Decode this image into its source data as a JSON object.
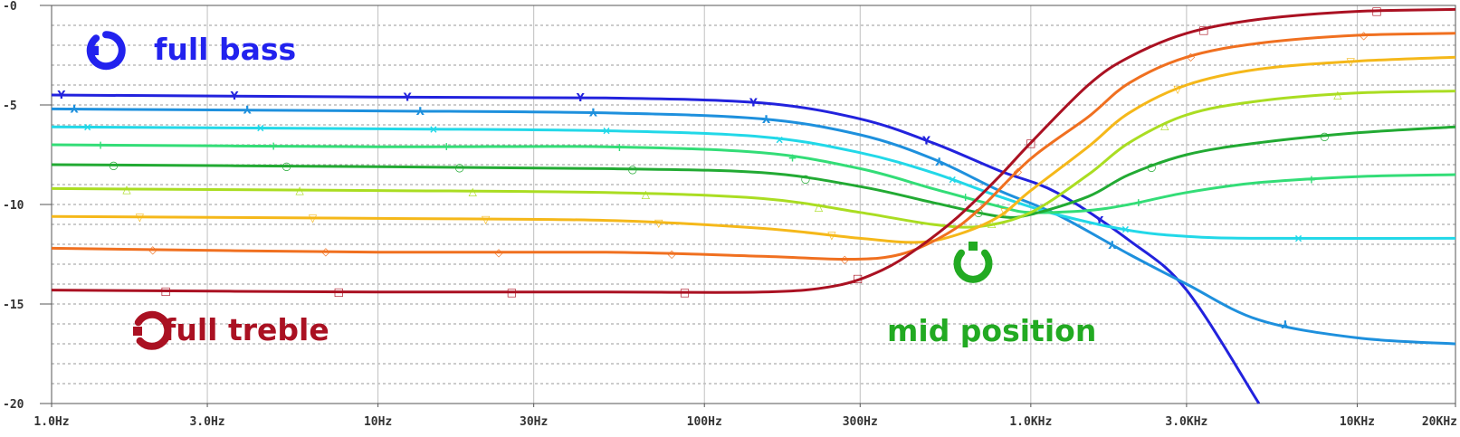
{
  "chart_data": {
    "type": "line",
    "title": "",
    "xlabel": "",
    "ylabel": "",
    "x_scale": "log",
    "xlim": [
      1,
      20000
    ],
    "ylim": [
      -20,
      0
    ],
    "grid": true,
    "x_ticks": [
      {
        "v": 1,
        "label": "1.0Hz"
      },
      {
        "v": 3,
        "label": "3.0Hz"
      },
      {
        "v": 10,
        "label": "10Hz"
      },
      {
        "v": 30,
        "label": "30Hz"
      },
      {
        "v": 100,
        "label": "100Hz"
      },
      {
        "v": 300,
        "label": "300Hz"
      },
      {
        "v": 1000,
        "label": "1.0KHz"
      },
      {
        "v": 3000,
        "label": "3.0KHz"
      },
      {
        "v": 10000,
        "label": "10KHz"
      },
      {
        "v": 20000,
        "label": "20KHz"
      }
    ],
    "y_ticks": [
      {
        "v": 0,
        "label": "-0"
      },
      {
        "v": -5,
        "label": "-5"
      },
      {
        "v": -10,
        "label": "-10"
      },
      {
        "v": -15,
        "label": "-15"
      },
      {
        "v": -20,
        "label": "-20"
      }
    ],
    "series": [
      {
        "color": "#2222dd",
        "marker": "Y",
        "points": [
          [
            1,
            -4.5
          ],
          [
            10,
            -4.6
          ],
          [
            50,
            -4.65
          ],
          [
            150,
            -4.9
          ],
          [
            300,
            -5.7
          ],
          [
            500,
            -6.9
          ],
          [
            800,
            -8.3
          ],
          [
            1200,
            -9.4
          ],
          [
            2000,
            -11.8
          ],
          [
            3000,
            -14.3
          ],
          [
            5000,
            -20
          ]
        ]
      },
      {
        "color": "#1e90dd",
        "marker": "⅄",
        "points": [
          [
            1,
            -5.2
          ],
          [
            10,
            -5.3
          ],
          [
            50,
            -5.4
          ],
          [
            150,
            -5.7
          ],
          [
            300,
            -6.5
          ],
          [
            500,
            -7.7
          ],
          [
            800,
            -9.3
          ],
          [
            1200,
            -10.5
          ],
          [
            2000,
            -12.5
          ],
          [
            3000,
            -14.0
          ],
          [
            5000,
            -15.8
          ],
          [
            10000,
            -16.7
          ],
          [
            20000,
            -17.0
          ]
        ]
      },
      {
        "color": "#22d8e8",
        "marker": "×",
        "points": [
          [
            1,
            -6.1
          ],
          [
            10,
            -6.2
          ],
          [
            50,
            -6.3
          ],
          [
            150,
            -6.6
          ],
          [
            300,
            -7.4
          ],
          [
            500,
            -8.4
          ],
          [
            800,
            -9.6
          ],
          [
            1200,
            -10.5
          ],
          [
            2000,
            -11.3
          ],
          [
            3000,
            -11.6
          ],
          [
            5000,
            -11.7
          ],
          [
            20000,
            -11.7
          ]
        ]
      },
      {
        "color": "#33dd77",
        "marker": "+",
        "points": [
          [
            1,
            -7.0
          ],
          [
            10,
            -7.1
          ],
          [
            50,
            -7.1
          ],
          [
            150,
            -7.4
          ],
          [
            300,
            -8.2
          ],
          [
            500,
            -9.2
          ],
          [
            800,
            -10.1
          ],
          [
            1000,
            -10.4
          ],
          [
            1500,
            -10.3
          ],
          [
            2000,
            -10.0
          ],
          [
            3000,
            -9.4
          ],
          [
            5000,
            -8.9
          ],
          [
            10000,
            -8.6
          ],
          [
            20000,
            -8.5
          ]
        ]
      },
      {
        "color": "#22aa33",
        "marker": "○",
        "points": [
          [
            1,
            -8.0
          ],
          [
            10,
            -8.1
          ],
          [
            50,
            -8.2
          ],
          [
            150,
            -8.4
          ],
          [
            300,
            -9.1
          ],
          [
            500,
            -9.9
          ],
          [
            800,
            -10.6
          ],
          [
            1000,
            -10.5
          ],
          [
            1500,
            -9.6
          ],
          [
            2000,
            -8.5
          ],
          [
            3000,
            -7.5
          ],
          [
            5000,
            -6.9
          ],
          [
            10000,
            -6.4
          ],
          [
            20000,
            -6.1
          ]
        ]
      },
      {
        "color": "#aadd22",
        "marker": "△",
        "points": [
          [
            1,
            -9.2
          ],
          [
            10,
            -9.3
          ],
          [
            50,
            -9.4
          ],
          [
            150,
            -9.7
          ],
          [
            300,
            -10.4
          ],
          [
            500,
            -11.0
          ],
          [
            700,
            -11.1
          ],
          [
            1000,
            -10.4
          ],
          [
            1500,
            -8.5
          ],
          [
            2000,
            -6.9
          ],
          [
            3000,
            -5.5
          ],
          [
            5000,
            -4.8
          ],
          [
            10000,
            -4.4
          ],
          [
            20000,
            -4.3
          ]
        ]
      },
      {
        "color": "#f5b81a",
        "marker": "▽",
        "points": [
          [
            1,
            -10.6
          ],
          [
            10,
            -10.7
          ],
          [
            50,
            -10.8
          ],
          [
            150,
            -11.2
          ],
          [
            300,
            -11.7
          ],
          [
            450,
            -11.9
          ],
          [
            600,
            -11.5
          ],
          [
            800,
            -10.6
          ],
          [
            1000,
            -9.3
          ],
          [
            1500,
            -7.1
          ],
          [
            2000,
            -5.4
          ],
          [
            3000,
            -4.0
          ],
          [
            5000,
            -3.2
          ],
          [
            10000,
            -2.8
          ],
          [
            20000,
            -2.6
          ]
        ]
      },
      {
        "color": "#f07020",
        "marker": "◇",
        "points": [
          [
            1,
            -12.2
          ],
          [
            10,
            -12.4
          ],
          [
            50,
            -12.4
          ],
          [
            150,
            -12.6
          ],
          [
            280,
            -12.75
          ],
          [
            400,
            -12.5
          ],
          [
            550,
            -11.5
          ],
          [
            700,
            -10.2
          ],
          [
            1000,
            -7.7
          ],
          [
            1500,
            -5.6
          ],
          [
            2000,
            -3.9
          ],
          [
            3000,
            -2.6
          ],
          [
            5000,
            -1.9
          ],
          [
            10000,
            -1.5
          ],
          [
            20000,
            -1.4
          ]
        ]
      },
      {
        "color": "#aa1122",
        "marker": "□",
        "points": [
          [
            1,
            -14.3
          ],
          [
            10,
            -14.4
          ],
          [
            50,
            -14.4
          ],
          [
            150,
            -14.4
          ],
          [
            250,
            -14.1
          ],
          [
            350,
            -13.3
          ],
          [
            450,
            -12.2
          ],
          [
            600,
            -10.6
          ],
          [
            800,
            -8.6
          ],
          [
            1000,
            -6.9
          ],
          [
            1500,
            -4.0
          ],
          [
            2000,
            -2.6
          ],
          [
            3000,
            -1.4
          ],
          [
            5000,
            -0.7
          ],
          [
            10000,
            -0.3
          ],
          [
            20000,
            -0.2
          ]
        ]
      }
    ],
    "annotations": [
      {
        "text": "full bass",
        "color": "#2222ee"
      },
      {
        "text": "full treble",
        "color": "#aa1122"
      },
      {
        "text": "mid position",
        "color": "#22aa22"
      }
    ]
  }
}
